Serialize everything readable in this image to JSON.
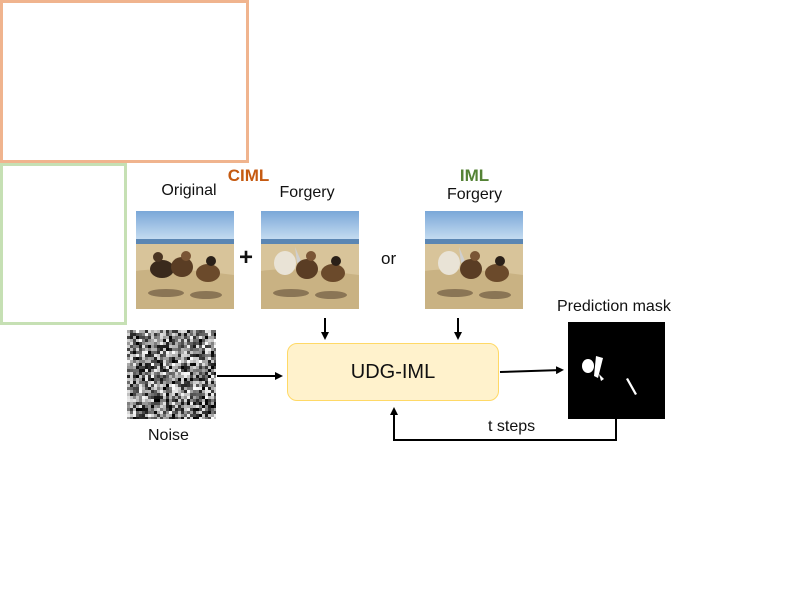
{
  "ciml": {
    "title": "CIML",
    "original_label": "Original",
    "forgery_label": "Forgery",
    "plus": "+"
  },
  "or_text": "or",
  "iml": {
    "title": "IML",
    "forgery_label": "Forgery"
  },
  "model": {
    "label": "UDG-IML"
  },
  "noise": {
    "label": "Noise"
  },
  "prediction": {
    "label": "Prediction mask"
  },
  "loop": {
    "label": "t steps"
  },
  "colors": {
    "ciml_title": "#c55a11",
    "ciml_border": "#f0b48e",
    "iml_title": "#548235",
    "iml_border": "#c6e0b4",
    "model_fill": "#fff2cc",
    "model_border": "#ffd966"
  },
  "icons": {
    "arrow": "arrow-icon"
  }
}
